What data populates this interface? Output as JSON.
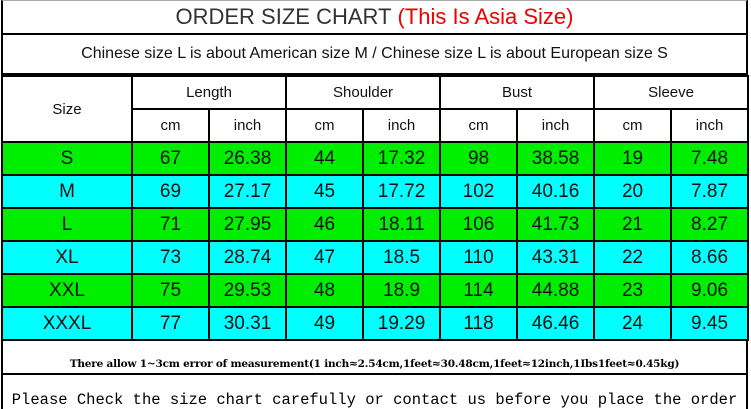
{
  "title": {
    "main": "ORDER SIZE CHART",
    "highlight": "(This Is Asia Size)"
  },
  "subtitle": "Chinese size L is about American size M  /  Chinese size L is about European size S",
  "colors": {
    "green_row": "#00ee00",
    "cyan_row": "#00ffff",
    "highlight": "#e00000"
  },
  "table": {
    "size_header": "Size",
    "groups": [
      "Length",
      "Shoulder",
      "Bust",
      "Sleeve"
    ],
    "units": [
      "cm",
      "inch",
      "cm",
      "inch",
      "cm",
      "inch",
      "cm",
      "inch"
    ],
    "rows": [
      [
        "S",
        "67",
        "26.38",
        "44",
        "17.32",
        "98",
        "38.58",
        "19",
        "7.48"
      ],
      [
        "M",
        "69",
        "27.17",
        "45",
        "17.72",
        "102",
        "40.16",
        "20",
        "7.87"
      ],
      [
        "L",
        "71",
        "27.95",
        "46",
        "18.11",
        "106",
        "41.73",
        "21",
        "8.27"
      ],
      [
        "XL",
        "73",
        "28.74",
        "47",
        "18.5",
        "110",
        "43.31",
        "22",
        "8.66"
      ],
      [
        "XXL",
        "75",
        "29.53",
        "48",
        "18.9",
        "114",
        "44.88",
        "23",
        "9.06"
      ],
      [
        "XXXL",
        "77",
        "30.31",
        "49",
        "19.29",
        "118",
        "46.46",
        "24",
        "9.45"
      ]
    ]
  },
  "note": "There allow 1~3cm error of measurement(1 inch≈2.54cm,1feet≈30.48cm,1feet≈12inch,1Ibs1feet≈0.45kg)",
  "footer": "Please Check the size chart carefully or contact us before you place the order"
}
